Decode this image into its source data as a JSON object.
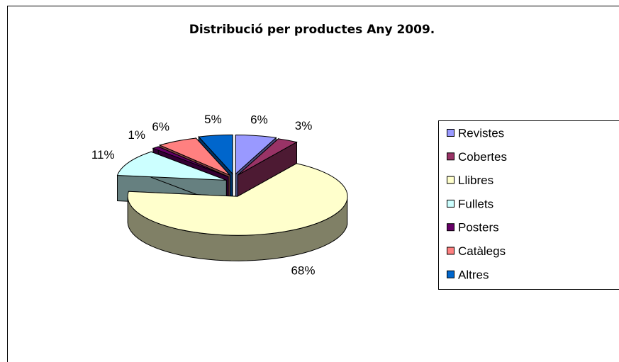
{
  "chart_data": {
    "type": "pie3d",
    "title": "Distribució per productes Any 2009.",
    "categories": [
      "Revistes",
      "Cobertes",
      "Llibres",
      "Fullets",
      "Posters",
      "Catàlegs",
      "Altres"
    ],
    "values": [
      6,
      3,
      68,
      11,
      1,
      6,
      5
    ],
    "value_labels": [
      "6%",
      "3%",
      "68%",
      "11%",
      "1%",
      "6%",
      "5%"
    ],
    "colors": [
      "#9999ff",
      "#993366",
      "#ffffcc",
      "#ccffff",
      "#660066",
      "#ff8080",
      "#0066cc"
    ],
    "legend": "right"
  }
}
